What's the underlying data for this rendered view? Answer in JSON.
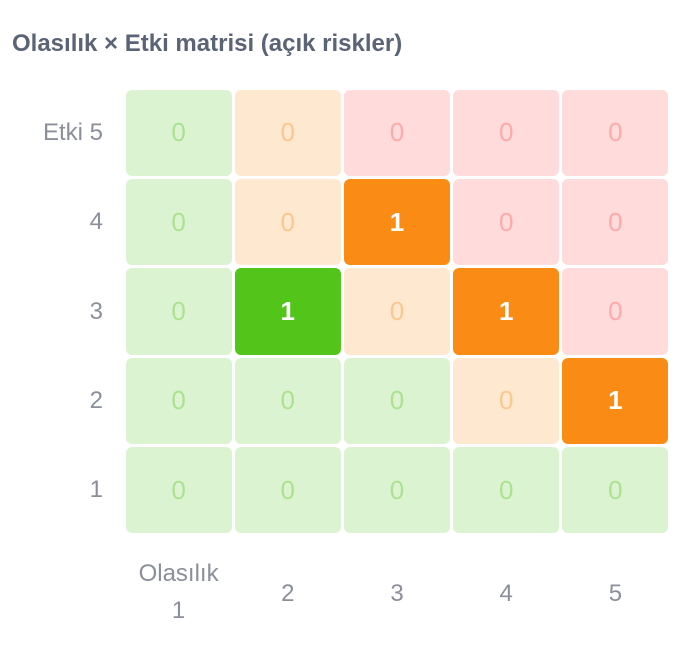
{
  "chart_data": {
    "type": "heatmap",
    "title": "Olasılık × Etki matrisi (açık riskler)",
    "x_categories": [
      "Olasılık 1",
      "2",
      "3",
      "4",
      "5"
    ],
    "y_categories": [
      "Etki 5",
      "4",
      "3",
      "2",
      "1"
    ],
    "values": [
      [
        0,
        0,
        0,
        0,
        0
      ],
      [
        0,
        0,
        1,
        0,
        0
      ],
      [
        0,
        1,
        0,
        1,
        0
      ],
      [
        0,
        0,
        0,
        0,
        1
      ],
      [
        0,
        0,
        0,
        0,
        0
      ]
    ],
    "colors": [
      [
        "#52c41a",
        "#fa8c16",
        "#ff4d4f",
        "#ff4d4f",
        "#ff4d4f"
      ],
      [
        "#52c41a",
        "#fa8c16",
        "#fa8c16",
        "#ff4d4f",
        "#ff4d4f"
      ],
      [
        "#52c41a",
        "#52c41a",
        "#fa8c16",
        "#fa8c16",
        "#ff4d4f"
      ],
      [
        "#52c41a",
        "#52c41a",
        "#52c41a",
        "#fa8c16",
        "#fa8c16"
      ],
      [
        "#52c41a",
        "#52c41a",
        "#52c41a",
        "#52c41a",
        "#52c41a"
      ]
    ]
  }
}
